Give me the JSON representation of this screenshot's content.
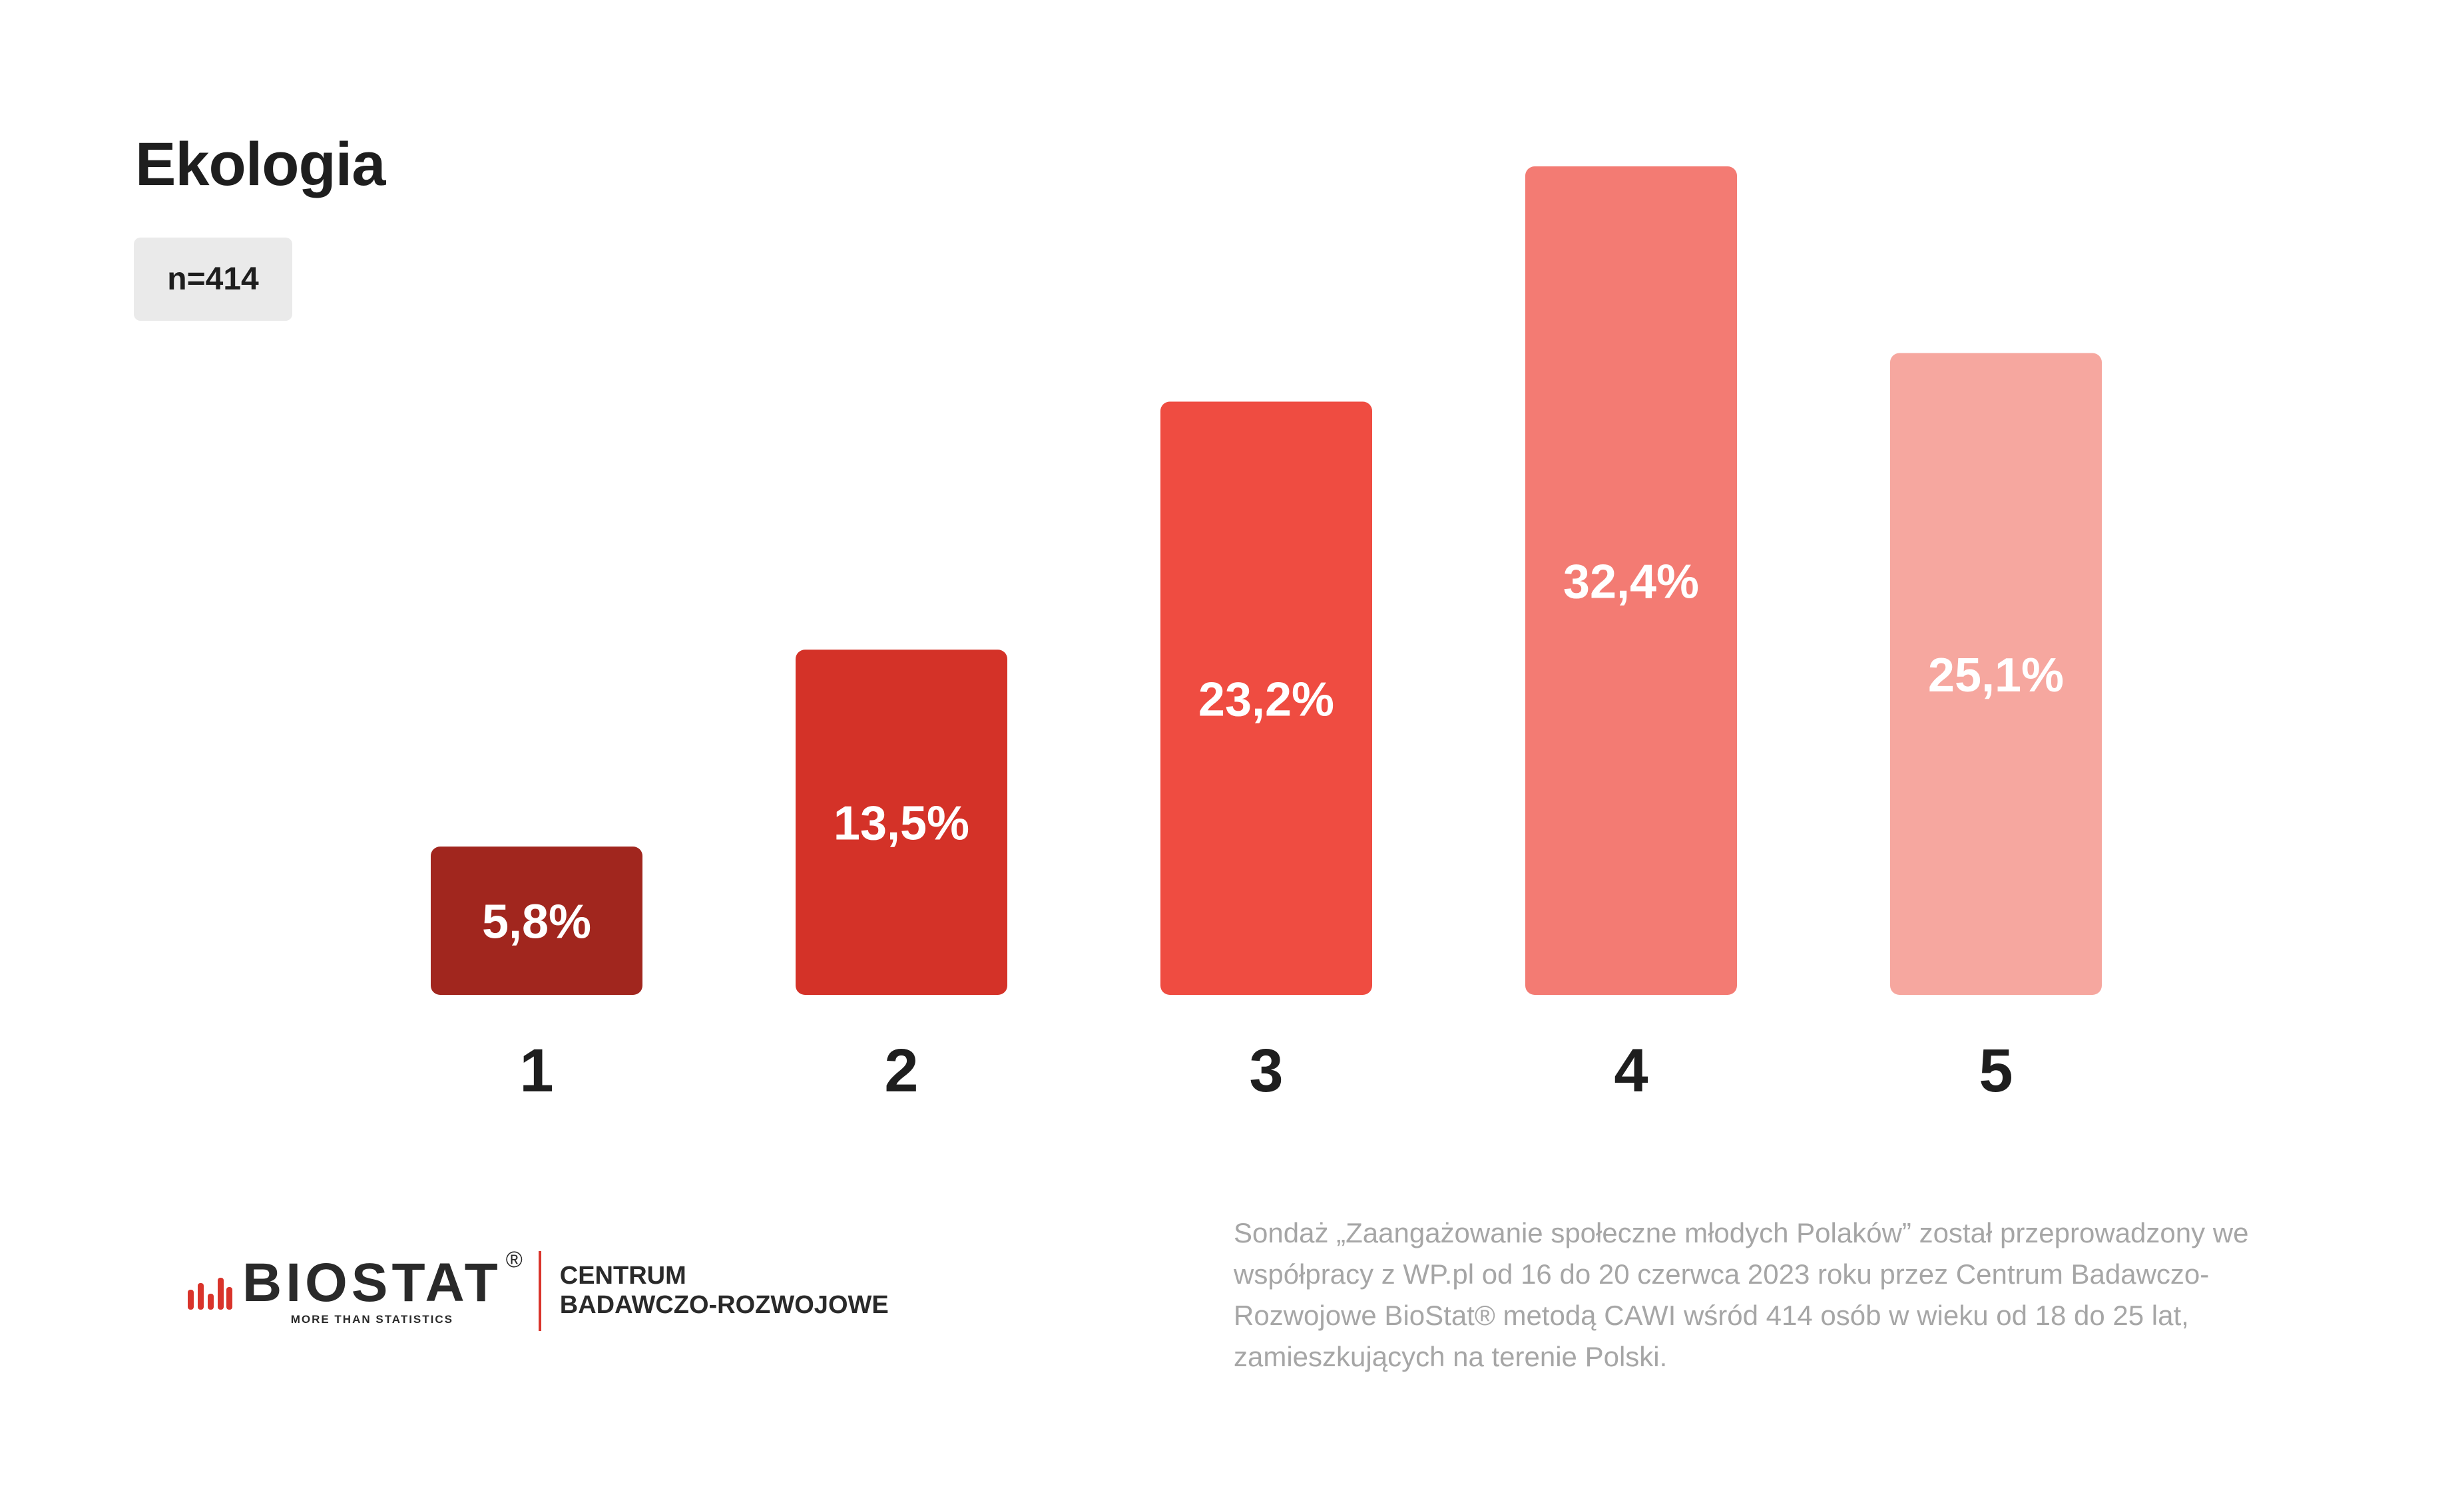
{
  "title": "Ekologia",
  "sample_label": "n=414",
  "chart_data": {
    "type": "bar",
    "title": "Ekologia",
    "categories": [
      "1",
      "2",
      "3",
      "4",
      "5"
    ],
    "values": [
      5.8,
      13.5,
      23.2,
      32.4,
      25.1
    ],
    "value_labels": [
      "5,8%",
      "13,5%",
      "23,2%",
      "32,4%",
      "25,1%"
    ],
    "colors": [
      "#a1261e",
      "#d43228",
      "#ef4c41",
      "#f37b73",
      "#f6a79f"
    ],
    "ylim": [
      0,
      32.4
    ],
    "grid": false,
    "legend": "none"
  },
  "logo": {
    "name": "BIOSTAT",
    "registered": "®",
    "tagline": "MORE THAN STATISTICS",
    "unit_line1": "CENTRUM",
    "unit_line2": "BADAWCZO-ROZWOJOWE",
    "accent_color": "#d9342b"
  },
  "footnote": "Sondaż „Zaangażowanie społeczne młodych Polaków” został przeprowadzony we współpracy z WP.pl od 16 do 20 czerwca 2023 roku przez Centrum Badawczo-Rozwojowe BioStat® metodą CAWI wśród 414 osób w wieku od 18 do 25 lat, zamieszkujących na terenie Polski."
}
